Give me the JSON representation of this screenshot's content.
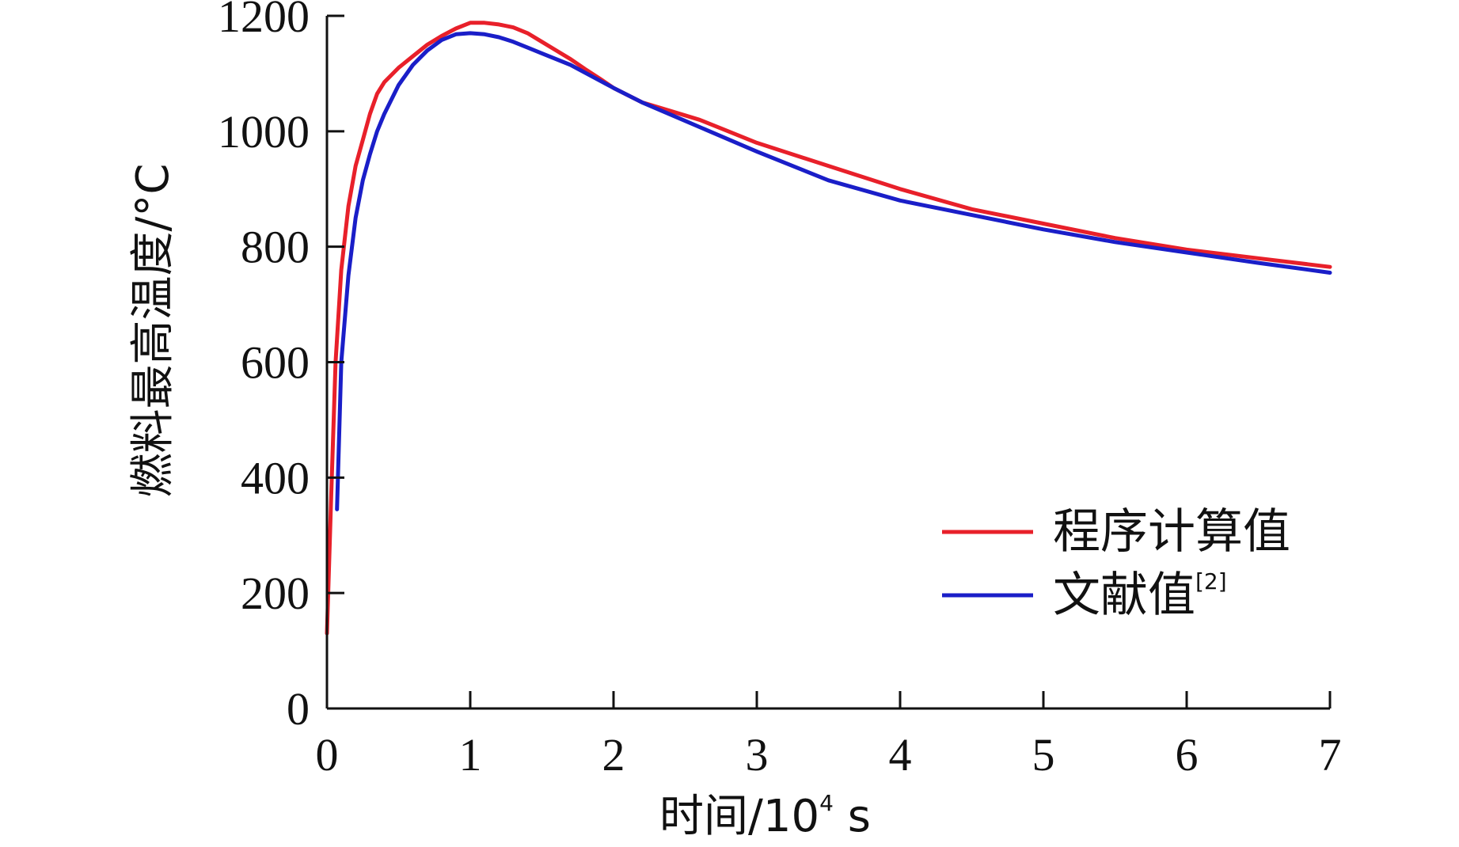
{
  "chart_data": {
    "type": "line",
    "title": "",
    "xlabel": {
      "main": "时间/10",
      "sup": "4",
      "unit": " s"
    },
    "ylabel": "燃料最高温度/°C",
    "xlim": [
      0,
      7
    ],
    "ylim": [
      0,
      1200
    ],
    "xticks": [
      "0",
      "1",
      "2",
      "3",
      "4",
      "5",
      "6",
      "7"
    ],
    "yticks": [
      "0",
      "200",
      "400",
      "600",
      "800",
      "1000",
      "1200"
    ],
    "grid": false,
    "legend_position": "center-right",
    "series": [
      {
        "name": "程序计算值",
        "name_sup": "",
        "color": "#e8202a",
        "x": [
          0.0,
          0.03,
          0.06,
          0.1,
          0.15,
          0.2,
          0.25,
          0.3,
          0.35,
          0.4,
          0.5,
          0.6,
          0.7,
          0.8,
          0.9,
          1.0,
          1.1,
          1.2,
          1.3,
          1.4,
          1.5,
          1.6,
          1.7,
          1.8,
          1.9,
          2.0,
          2.2,
          2.4,
          2.6,
          2.8,
          3.0,
          3.5,
          4.0,
          4.5,
          5.0,
          5.5,
          6.0,
          6.5,
          7.0
        ],
        "y": [
          130,
          370,
          600,
          760,
          870,
          940,
          985,
          1030,
          1065,
          1085,
          1110,
          1130,
          1150,
          1165,
          1178,
          1188,
          1188,
          1185,
          1180,
          1170,
          1155,
          1140,
          1125,
          1108,
          1092,
          1075,
          1050,
          1035,
          1020,
          1000,
          980,
          940,
          900,
          865,
          840,
          815,
          795,
          780,
          765
        ]
      },
      {
        "name": "文献值",
        "name_sup": "[2]",
        "color": "#1a1ec8",
        "x": [
          0.07,
          0.1,
          0.15,
          0.2,
          0.25,
          0.3,
          0.35,
          0.4,
          0.5,
          0.6,
          0.7,
          0.8,
          0.9,
          1.0,
          1.1,
          1.2,
          1.3,
          1.4,
          1.5,
          1.7,
          2.0,
          2.2,
          2.5,
          3.0,
          3.5,
          4.0,
          4.5,
          5.0,
          5.5,
          6.0,
          6.5,
          7.0
        ],
        "y": [
          345,
          600,
          750,
          850,
          915,
          960,
          1000,
          1030,
          1080,
          1115,
          1140,
          1158,
          1168,
          1170,
          1168,
          1163,
          1155,
          1145,
          1135,
          1115,
          1075,
          1050,
          1018,
          965,
          915,
          880,
          855,
          830,
          808,
          790,
          772,
          755
        ]
      }
    ]
  }
}
